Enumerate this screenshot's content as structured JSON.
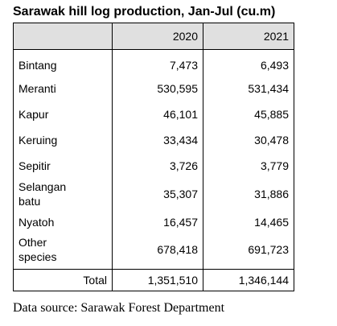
{
  "title": "Sarawak hill log production, Jan-Jul (cu.m)",
  "source": "Data source: Sarawak Forest Department",
  "chart_data": {
    "type": "table",
    "title": "Sarawak hill log production, Jan-Jul (cu.m)",
    "columns": [
      "",
      "2020",
      "2021"
    ],
    "rows": [
      {
        "label": [
          "Bintang"
        ],
        "values": [
          "7,473",
          "6,493"
        ]
      },
      {
        "label": [
          "Meranti"
        ],
        "values": [
          "530,595",
          "531,434"
        ]
      },
      {
        "label": [
          "Kapur"
        ],
        "values": [
          "46,101",
          "45,885"
        ]
      },
      {
        "label": [
          "Keruing"
        ],
        "values": [
          "33,434",
          "30,478"
        ]
      },
      {
        "label": [
          "Sepitir"
        ],
        "values": [
          "3,726",
          "3,779"
        ]
      },
      {
        "label": [
          "Selangan",
          "batu"
        ],
        "values": [
          "35,307",
          "31,886"
        ]
      },
      {
        "label": [
          "Nyatoh"
        ],
        "values": [
          "16,457",
          "14,465"
        ]
      },
      {
        "label": [
          "Other",
          "species"
        ],
        "values": [
          "678,418",
          "691,723"
        ]
      }
    ],
    "total": {
      "label": "Total",
      "values": [
        "1,351,510",
        "1,346,144"
      ]
    },
    "series": [
      {
        "name": "2020",
        "values": [
          7473,
          530595,
          46101,
          33434,
          3726,
          35307,
          16457,
          678418
        ]
      },
      {
        "name": "2021",
        "values": [
          6493,
          531434,
          45885,
          30478,
          3779,
          31886,
          14465,
          691723
        ]
      }
    ],
    "categories": [
      "Bintang",
      "Meranti",
      "Kapur",
      "Keruing",
      "Sepitir",
      "Selangan batu",
      "Nyatoh",
      "Other species"
    ],
    "totals": [
      1351510,
      1346144
    ],
    "header_fill": "#e0e0e0",
    "border_color": "#000000"
  }
}
